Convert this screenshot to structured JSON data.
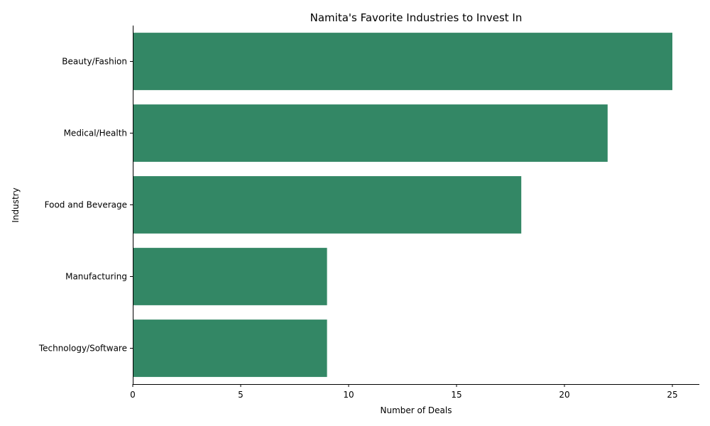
{
  "chart_data": {
    "type": "bar",
    "orientation": "horizontal",
    "title": "Namita's Favorite Industries to Invest In",
    "xlabel": "Number of Deals",
    "ylabel": "Industry",
    "categories": [
      "Beauty/Fashion",
      "Medical/Health",
      "Food and Beverage",
      "Manufacturing",
      "Technology/Software"
    ],
    "values": [
      25,
      22,
      18,
      9,
      9
    ],
    "xlim": [
      0,
      26.25
    ],
    "xticks": [
      0,
      5,
      10,
      15,
      20,
      25
    ],
    "grid": false,
    "legend": "none",
    "bar_color": "#338765"
  }
}
